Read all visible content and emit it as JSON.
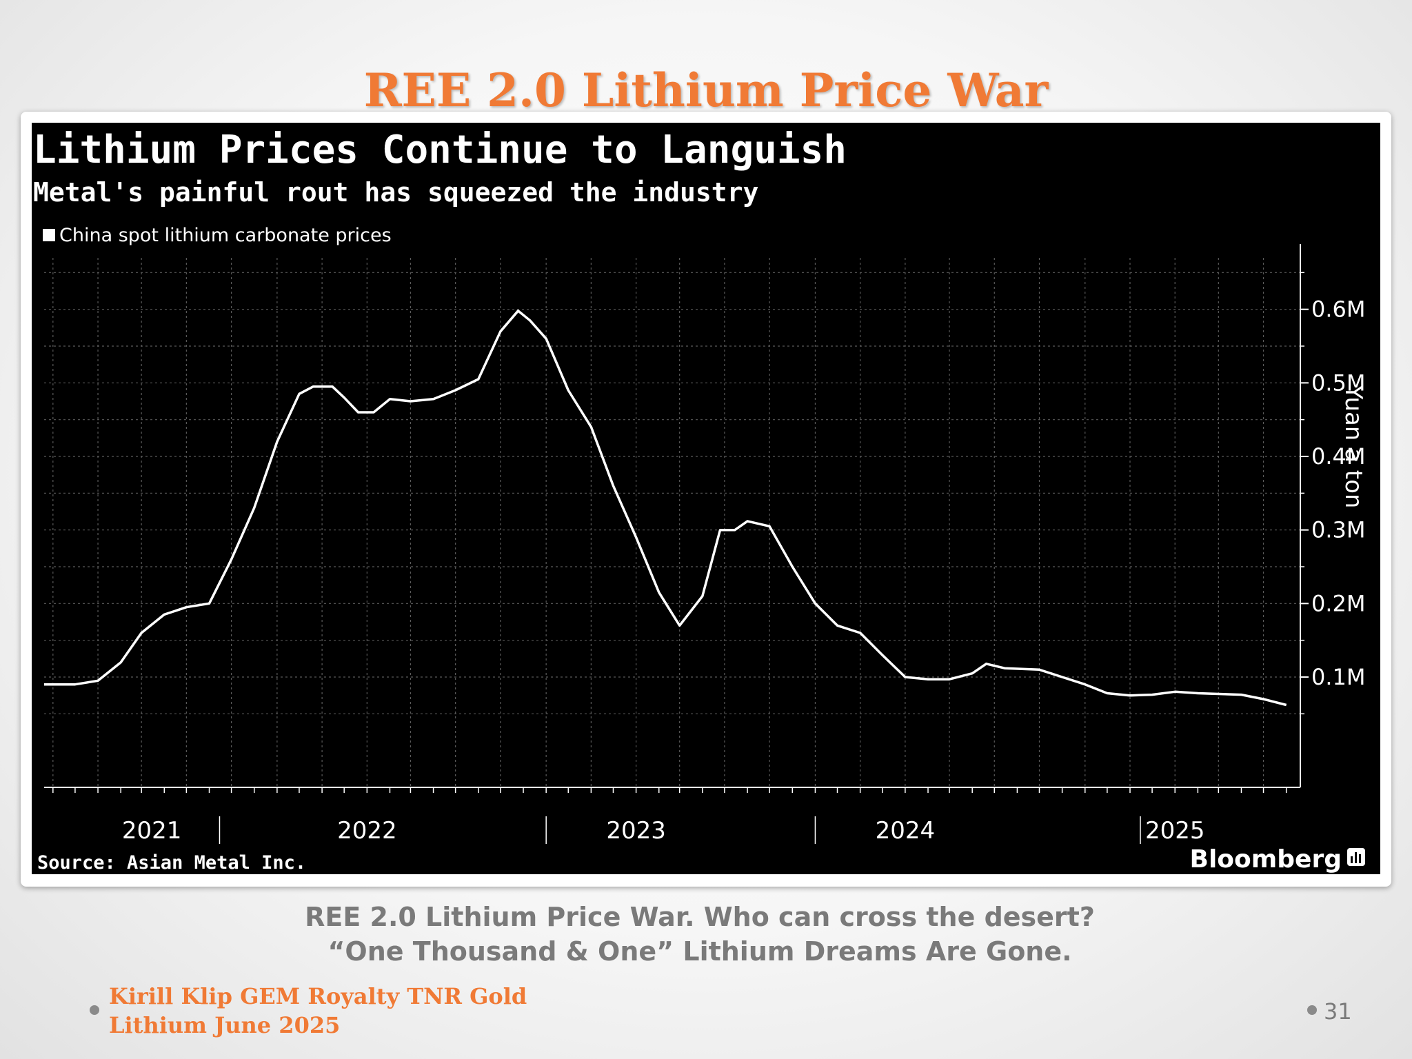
{
  "slide": {
    "title": "REE 2.0 Lithium Price War",
    "caption_line1": "REE 2.0 Lithium Price War. Who can cross the desert?",
    "caption_line2": "“One Thousand & One” Lithium Dreams Are Gone.",
    "footer_line1": "Kirill Klip GEM Royalty TNR Gold",
    "footer_line2": "Lithium June 2025",
    "page_number": "31",
    "accent_color": "#f07a35"
  },
  "chart_data": {
    "type": "line",
    "title": "Lithium Prices Continue to Languish",
    "subtitle": "Metal's painful rout has squeezed the industry",
    "ylabel": "Yuan a ton",
    "source": "Source: Asian Metal Inc.",
    "brand": "Bloomberg",
    "legend_position": "top-left",
    "grid": true,
    "xlim": [
      "2020-10-20",
      "2025-06-20"
    ],
    "ylim": [
      -50000,
      670000
    ],
    "x_tick_labels": [
      {
        "label": "2021",
        "date": "2021-03-15"
      },
      {
        "label": "2022",
        "date": "2022-01-01"
      },
      {
        "label": "2023",
        "date": "2023-01-01"
      },
      {
        "label": "2024",
        "date": "2024-01-01"
      },
      {
        "label": "2025",
        "date": "2025-01-01"
      }
    ],
    "y_ticks": [
      {
        "label": "0.1M",
        "value": 100000
      },
      {
        "label": "0.2M",
        "value": 200000
      },
      {
        "label": "0.3M",
        "value": 300000
      },
      {
        "label": "0.4M",
        "value": 400000
      },
      {
        "label": "0.5M",
        "value": 500000
      },
      {
        "label": "0.6M",
        "value": 600000
      }
    ],
    "series": [
      {
        "name": "China spot lithium carbonate prices",
        "color": "#ffffff",
        "points": [
          [
            "2020-10-20",
            90000
          ],
          [
            "2020-12-01",
            90000
          ],
          [
            "2021-01-01",
            95000
          ],
          [
            "2021-02-01",
            120000
          ],
          [
            "2021-03-01",
            160000
          ],
          [
            "2021-04-01",
            185000
          ],
          [
            "2021-05-01",
            195000
          ],
          [
            "2021-06-01",
            200000
          ],
          [
            "2021-07-01",
            260000
          ],
          [
            "2021-08-01",
            330000
          ],
          [
            "2021-09-01",
            420000
          ],
          [
            "2021-10-01",
            485000
          ],
          [
            "2021-10-20",
            495000
          ],
          [
            "2021-11-15",
            495000
          ],
          [
            "2021-12-01",
            480000
          ],
          [
            "2021-12-20",
            460000
          ],
          [
            "2022-01-10",
            460000
          ],
          [
            "2022-02-01",
            478000
          ],
          [
            "2022-03-01",
            475000
          ],
          [
            "2022-04-01",
            478000
          ],
          [
            "2022-05-01",
            490000
          ],
          [
            "2022-06-01",
            505000
          ],
          [
            "2022-07-01",
            570000
          ],
          [
            "2022-07-25",
            598000
          ],
          [
            "2022-08-10",
            585000
          ],
          [
            "2022-09-01",
            560000
          ],
          [
            "2022-10-01",
            490000
          ],
          [
            "2022-11-01",
            440000
          ],
          [
            "2022-12-01",
            360000
          ],
          [
            "2023-01-01",
            290000
          ],
          [
            "2023-02-01",
            215000
          ],
          [
            "2023-03-01",
            170000
          ],
          [
            "2023-04-01",
            210000
          ],
          [
            "2023-04-25",
            300000
          ],
          [
            "2023-05-15",
            300000
          ],
          [
            "2023-06-01",
            312000
          ],
          [
            "2023-07-01",
            305000
          ],
          [
            "2023-08-01",
            250000
          ],
          [
            "2023-09-01",
            200000
          ],
          [
            "2023-10-01",
            170000
          ],
          [
            "2023-11-01",
            160000
          ],
          [
            "2023-12-01",
            130000
          ],
          [
            "2024-01-01",
            100000
          ],
          [
            "2024-02-01",
            97000
          ],
          [
            "2024-03-01",
            97000
          ],
          [
            "2024-04-01",
            105000
          ],
          [
            "2024-04-20",
            118000
          ],
          [
            "2024-05-15",
            112000
          ],
          [
            "2024-07-01",
            110000
          ],
          [
            "2024-08-01",
            100000
          ],
          [
            "2024-09-01",
            90000
          ],
          [
            "2024-10-01",
            78000
          ],
          [
            "2024-11-01",
            75000
          ],
          [
            "2024-12-01",
            76000
          ],
          [
            "2025-01-01",
            80000
          ],
          [
            "2025-02-01",
            78000
          ],
          [
            "2025-03-01",
            77000
          ],
          [
            "2025-04-01",
            76000
          ],
          [
            "2025-05-01",
            70000
          ],
          [
            "2025-06-01",
            62000
          ]
        ]
      }
    ]
  }
}
